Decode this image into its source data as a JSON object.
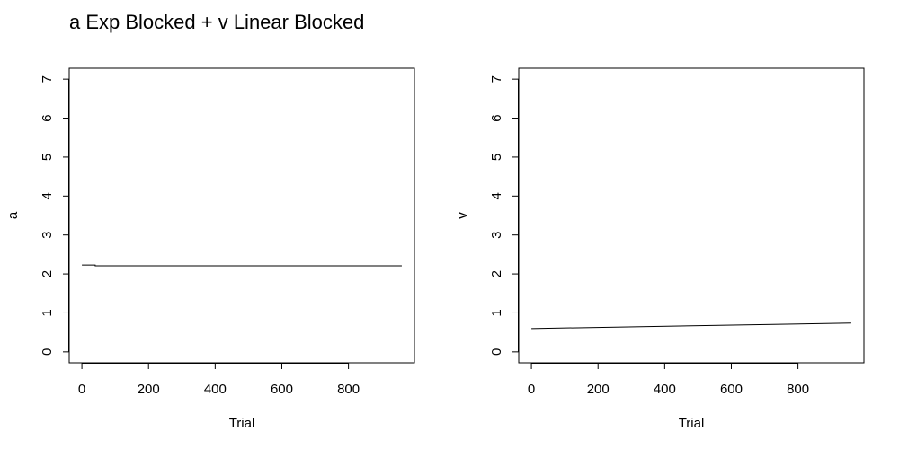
{
  "figure": {
    "title": "a Exp Blocked + v Linear Blocked"
  },
  "chart_data": [
    {
      "type": "line",
      "xlabel": "Trial",
      "ylabel": "a",
      "xlim": [
        -38,
        998
      ],
      "ylim": [
        -0.28,
        7.28
      ],
      "xticks": [
        0,
        200,
        400,
        600,
        800
      ],
      "yticks": [
        0,
        1,
        2,
        3,
        4,
        5,
        6,
        7
      ],
      "grid": false,
      "series": [
        {
          "x": [
            0,
            40,
            40,
            960
          ],
          "y": [
            2.23,
            2.23,
            2.21,
            2.21
          ],
          "color": "#000000"
        }
      ]
    },
    {
      "type": "line",
      "xlabel": "Trial",
      "ylabel": "v",
      "xlim": [
        -38,
        998
      ],
      "ylim": [
        -0.28,
        7.28
      ],
      "xticks": [
        0,
        200,
        400,
        600,
        800
      ],
      "yticks": [
        0,
        1,
        2,
        3,
        4,
        5,
        6,
        7
      ],
      "grid": false,
      "series": [
        {
          "x": [
            0,
            960
          ],
          "y": [
            0.6,
            0.74
          ],
          "color": "#000000"
        }
      ]
    }
  ]
}
